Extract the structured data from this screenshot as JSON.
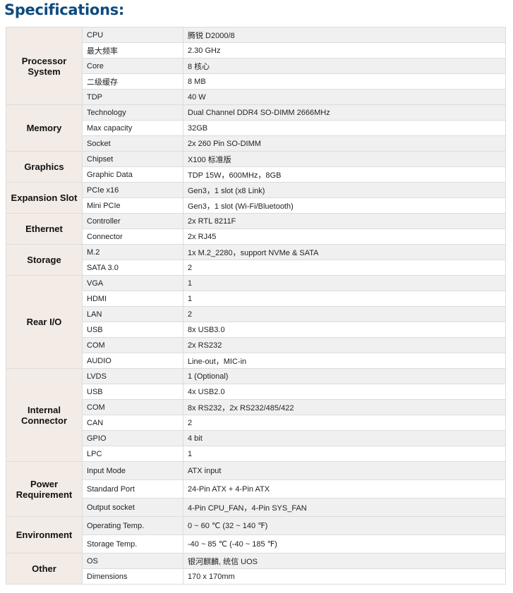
{
  "title": "Specifications:",
  "groups": [
    {
      "category": "Processor System",
      "rows": [
        [
          "CPU",
          "腾锐 D2000/8"
        ],
        [
          "最大频率",
          "2.30 GHz"
        ],
        [
          "Core",
          "8 核心"
        ],
        [
          "二级缓存",
          "8 MB"
        ],
        [
          "TDP",
          "40 W"
        ]
      ]
    },
    {
      "category": "Memory",
      "rows": [
        [
          "Technology",
          "Dual Channel DDR4 SO-DIMM 2666MHz"
        ],
        [
          "Max capacity",
          "32GB"
        ],
        [
          "Socket",
          "2x 260 Pin SO-DIMM"
        ]
      ]
    },
    {
      "category": "Graphics",
      "rows": [
        [
          "Chipset",
          "X100 标准版"
        ],
        [
          "Graphic Data",
          "TDP 15W，600MHz，8GB"
        ]
      ]
    },
    {
      "category": "Expansion Slot",
      "rows": [
        [
          "PCIe x16",
          "Gen3，1 slot (x8 Link)"
        ],
        [
          "Mini PCIe",
          "Gen3，1 slot (Wi-Fi/Bluetooth)"
        ]
      ]
    },
    {
      "category": "Ethernet",
      "rows": [
        [
          "Controller",
          "2x RTL 8211F"
        ],
        [
          "Connector",
          "2x RJ45"
        ]
      ]
    },
    {
      "category": "Storage",
      "rows": [
        [
          "M.2",
          "1x M.2_2280，support NVMe & SATA"
        ],
        [
          "SATA 3.0",
          "2"
        ]
      ]
    },
    {
      "category": "Rear I/O",
      "rows": [
        [
          "VGA",
          "1"
        ],
        [
          "HDMI",
          "1"
        ],
        [
          "LAN",
          "2"
        ],
        [
          "USB",
          "8x USB3.0"
        ],
        [
          "COM",
          "2x RS232"
        ],
        [
          "AUDIO",
          "Line-out，MIC-in"
        ]
      ]
    },
    {
      "category": "Internal Connector",
      "rows": [
        [
          "LVDS",
          "1 (Optional)"
        ],
        [
          "USB",
          "4x USB2.0"
        ],
        [
          "COM",
          "8x RS232，2x RS232/485/422"
        ],
        [
          "CAN",
          "2"
        ],
        [
          "GPIO",
          "4 bit"
        ],
        [
          "LPC",
          "1"
        ]
      ]
    },
    {
      "category": "Power Requirement",
      "rows": [
        [
          "Input Mode",
          "ATX input"
        ],
        [
          "Standard Port",
          "24-Pin ATX + 4-Pin ATX"
        ],
        [
          "Output socket",
          "4-Pin CPU_FAN，4-Pin SYS_FAN"
        ]
      ]
    },
    {
      "category": "Environment",
      "rows": [
        [
          "Operating Temp.",
          "0 ~ 60 ℃ (32 ~ 140 ℉)"
        ],
        [
          "Storage Temp.",
          "-40 ~ 85 ℃ (-40 ~ 185 ℉)"
        ]
      ]
    },
    {
      "category": "Other",
      "rows": [
        [
          "OS",
          "银河麒麟, 统信 UOS"
        ],
        [
          "Dimensions",
          "170 x 170mm"
        ]
      ]
    }
  ]
}
